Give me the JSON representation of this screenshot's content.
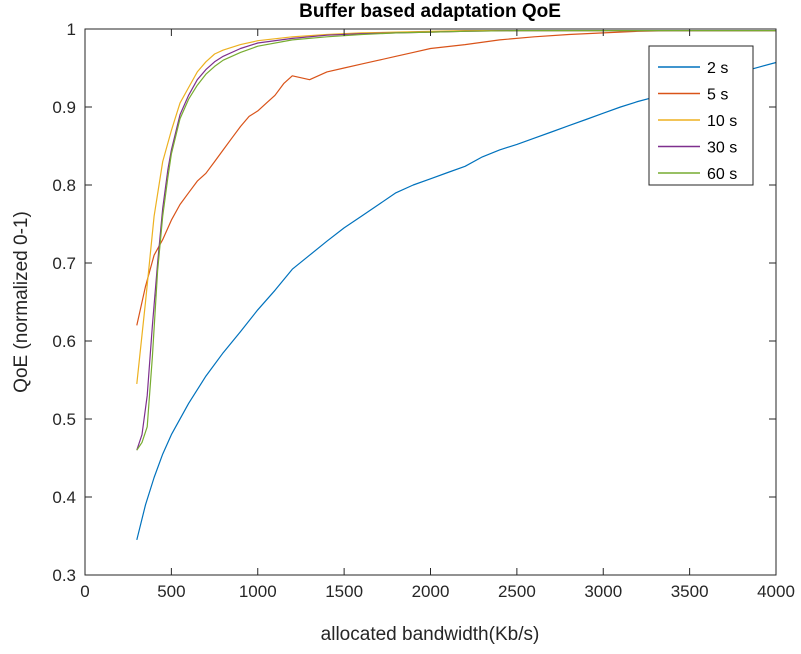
{
  "chart_data": {
    "type": "line",
    "title": "Buffer based adaptation QoE",
    "xlabel": "allocated bandwidth(Kb/s)",
    "ylabel": "QoE (normalized 0-1)",
    "xlim": [
      0,
      4000
    ],
    "ylim": [
      0.3,
      1.0
    ],
    "xticks": [
      0,
      500,
      1000,
      1500,
      2000,
      2500,
      3000,
      3500,
      4000
    ],
    "xtick_labels": [
      "0",
      "500",
      "1000",
      "1500",
      "2000",
      "2500",
      "3000",
      "3500",
      "4000"
    ],
    "yticks": [
      0.3,
      0.4,
      0.5,
      0.6,
      0.7,
      0.8,
      0.9,
      1.0
    ],
    "ytick_labels": [
      "0.3",
      "0.4",
      "0.5",
      "0.6",
      "0.7",
      "0.8",
      "0.9",
      "1"
    ],
    "grid": false,
    "legend_position": "top-right",
    "series": [
      {
        "name": "2 s",
        "color": "#0072BD",
        "x": [
          300,
          350,
          400,
          450,
          500,
          600,
          700,
          800,
          900,
          1000,
          1100,
          1200,
          1300,
          1400,
          1500,
          1600,
          1700,
          1800,
          1900,
          2000,
          2100,
          2200,
          2300,
          2400,
          2500,
          2600,
          2700,
          2800,
          2900,
          3000,
          3100,
          3200,
          3300,
          3400,
          3500,
          3600,
          3700,
          3800,
          3900,
          4000
        ],
        "y": [
          0.345,
          0.39,
          0.425,
          0.455,
          0.48,
          0.52,
          0.555,
          0.585,
          0.612,
          0.64,
          0.665,
          0.692,
          0.71,
          0.728,
          0.745,
          0.76,
          0.775,
          0.79,
          0.8,
          0.808,
          0.816,
          0.824,
          0.836,
          0.845,
          0.852,
          0.86,
          0.868,
          0.876,
          0.884,
          0.892,
          0.9,
          0.907,
          0.913,
          0.92,
          0.927,
          0.933,
          0.939,
          0.945,
          0.951,
          0.957
        ]
      },
      {
        "name": "5 s",
        "color": "#D95319",
        "x": [
          300,
          350,
          400,
          450,
          500,
          550,
          600,
          650,
          700,
          750,
          800,
          850,
          900,
          950,
          1000,
          1050,
          1100,
          1150,
          1200,
          1300,
          1400,
          1500,
          1600,
          1700,
          1800,
          1900,
          2000,
          2200,
          2400,
          2600,
          2800,
          3000,
          3200,
          3400,
          3600,
          3800,
          4000
        ],
        "y": [
          0.62,
          0.67,
          0.71,
          0.73,
          0.755,
          0.775,
          0.79,
          0.805,
          0.815,
          0.83,
          0.845,
          0.86,
          0.875,
          0.888,
          0.895,
          0.905,
          0.915,
          0.93,
          0.94,
          0.935,
          0.945,
          0.95,
          0.955,
          0.96,
          0.965,
          0.97,
          0.975,
          0.98,
          0.986,
          0.99,
          0.993,
          0.995,
          0.997,
          0.998,
          0.998,
          0.998,
          0.998
        ]
      },
      {
        "name": "10 s",
        "color": "#EDB120",
        "x": [
          300,
          350,
          400,
          450,
          500,
          550,
          600,
          650,
          700,
          750,
          800,
          900,
          1000,
          1200,
          1400,
          1600,
          1800,
          2000,
          2200,
          2500,
          3000,
          3500,
          4000
        ],
        "y": [
          0.545,
          0.65,
          0.76,
          0.83,
          0.87,
          0.905,
          0.925,
          0.945,
          0.958,
          0.968,
          0.973,
          0.98,
          0.985,
          0.99,
          0.993,
          0.995,
          0.996,
          0.997,
          0.998,
          0.998,
          0.998,
          0.998,
          0.998
        ]
      },
      {
        "name": "30 s",
        "color": "#7E2F8E",
        "x": [
          300,
          330,
          360,
          390,
          420,
          450,
          480,
          500,
          550,
          600,
          650,
          700,
          750,
          800,
          900,
          1000,
          1200,
          1400,
          1600,
          1800,
          2000,
          2200,
          2500,
          3000,
          3500,
          4000
        ],
        "y": [
          0.46,
          0.48,
          0.53,
          0.62,
          0.7,
          0.77,
          0.82,
          0.845,
          0.89,
          0.915,
          0.935,
          0.948,
          0.958,
          0.965,
          0.975,
          0.982,
          0.988,
          0.992,
          0.994,
          0.995,
          0.996,
          0.997,
          0.998,
          0.998,
          0.998,
          0.998
        ]
      },
      {
        "name": "60 s",
        "color": "#77AC30",
        "x": [
          300,
          330,
          360,
          390,
          420,
          450,
          480,
          500,
          550,
          600,
          650,
          700,
          750,
          800,
          900,
          1000,
          1200,
          1400,
          1600,
          1800,
          2000,
          2200,
          2500,
          3000,
          3500,
          4000
        ],
        "y": [
          0.46,
          0.47,
          0.49,
          0.58,
          0.69,
          0.76,
          0.81,
          0.84,
          0.885,
          0.91,
          0.928,
          0.942,
          0.952,
          0.96,
          0.97,
          0.978,
          0.986,
          0.99,
          0.993,
          0.995,
          0.996,
          0.997,
          0.998,
          0.998,
          0.998,
          0.998
        ]
      }
    ]
  }
}
